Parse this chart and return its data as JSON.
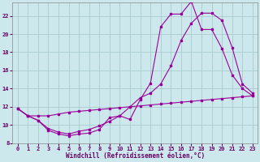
{
  "xlabel": "Windchill (Refroidissement éolien,°C)",
  "bg_color": "#cde8ec",
  "line_color": "#990099",
  "grid_color": "#aacccc",
  "xlim_min": -0.5,
  "xlim_max": 23.5,
  "ylim_min": 8,
  "ylim_max": 23.5,
  "xticks": [
    0,
    1,
    2,
    3,
    4,
    5,
    6,
    7,
    8,
    9,
    10,
    11,
    12,
    13,
    14,
    15,
    16,
    17,
    18,
    19,
    20,
    21,
    22,
    23
  ],
  "yticks": [
    8,
    10,
    12,
    14,
    16,
    18,
    20,
    22
  ],
  "curve1_x": [
    0,
    1,
    2,
    3,
    4,
    5,
    6,
    7,
    8,
    9,
    10,
    11,
    12,
    13,
    14,
    15,
    16,
    17,
    18,
    19,
    20,
    21,
    22,
    23
  ],
  "curve1_y": [
    11.8,
    11.0,
    10.5,
    9.4,
    9.0,
    8.8,
    9.0,
    9.1,
    9.5,
    10.8,
    11.0,
    10.6,
    12.8,
    14.6,
    20.8,
    22.2,
    22.2,
    23.6,
    20.5,
    20.5,
    18.4,
    15.5,
    14.0,
    13.2
  ],
  "curve2_x": [
    0,
    1,
    2,
    3,
    4,
    5,
    6,
    7,
    8,
    9,
    10,
    11,
    12,
    13,
    14,
    15,
    16,
    17,
    18,
    19,
    20,
    21,
    22,
    23
  ],
  "curve2_y": [
    11.8,
    11.0,
    10.5,
    9.6,
    9.2,
    9.0,
    9.3,
    9.5,
    9.9,
    10.4,
    11.0,
    12.0,
    13.0,
    13.5,
    14.5,
    16.5,
    19.3,
    21.2,
    22.3,
    22.3,
    21.5,
    18.5,
    14.5,
    13.5
  ],
  "curve3_x": [
    0,
    1,
    2,
    3,
    4,
    5,
    6,
    7,
    8,
    9,
    10,
    11,
    12,
    13,
    14,
    15,
    16,
    17,
    18,
    19,
    20,
    21,
    22,
    23
  ],
  "curve3_y": [
    11.8,
    11.0,
    11.0,
    11.0,
    11.2,
    11.4,
    11.5,
    11.6,
    11.7,
    11.8,
    11.9,
    12.0,
    12.1,
    12.2,
    12.3,
    12.4,
    12.5,
    12.6,
    12.7,
    12.8,
    12.9,
    13.0,
    13.1,
    13.2
  ],
  "xlabel_fontsize": 5.5,
  "tick_fontsize": 5.0
}
